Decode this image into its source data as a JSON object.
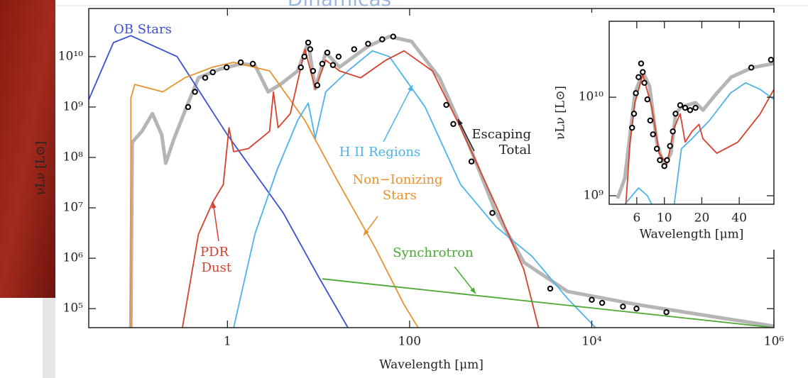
{
  "slide": {
    "title": "Dinámicas"
  },
  "chart_data": [
    {
      "type": "line",
      "xscale": "log",
      "yscale": "log",
      "xlabel": "Wavelength [μm]",
      "ylabel": "νLν [L⊙]",
      "xlim": [
        0.03,
        1000000
      ],
      "ylim": [
        42000,
        90000000000
      ],
      "xticks": [
        1,
        100,
        {
          "value": 10000,
          "label": "10⁴"
        },
        {
          "value": 1000000,
          "label": "10⁶"
        }
      ],
      "yticks": [
        {
          "value": 10000000000,
          "label": "10¹⁰"
        },
        {
          "value": 1000000000,
          "label": "10⁹"
        },
        {
          "value": 100000000,
          "label": "10⁸"
        },
        {
          "value": 10000000,
          "label": "10⁷"
        },
        {
          "value": 1000000,
          "label": "10⁶"
        },
        {
          "value": 100000,
          "label": "10⁵"
        }
      ],
      "series": [
        {
          "name": "Escaping Total",
          "color": "#b5b5b5",
          "x": [
            0.087,
            0.09,
            0.115,
            0.15,
            0.19,
            0.21,
            0.26,
            0.37,
            0.48,
            0.82,
            1.4,
            2,
            2.8,
            3.8,
            5.9,
            7.7,
            9.2,
            12,
            17,
            35,
            60,
            105,
            213,
            437,
            890,
            1800,
            5400,
            32000,
            190000,
            1000000
          ],
          "values": [
            42000,
            200000000,
            330000000,
            740000000,
            280000000,
            77000000,
            240000000,
            1200000000,
            3800000000,
            5600000000,
            7200000000,
            6800000000,
            2000000000,
            2800000000,
            5200000000,
            19000000000,
            2300000000,
            12000000000,
            6200000000,
            16000000000,
            25000000000,
            20000000000,
            3800000000,
            200000000,
            7900000,
            830000,
            220000,
            120000,
            72000,
            45000
          ]
        },
        {
          "name": "OB Stars",
          "color": "#3b4fd6",
          "x": [
            0.03,
            0.056,
            0.087,
            0.28,
            1,
            4.1,
            10,
            21
          ],
          "values": [
            1400000000,
            19000000000,
            26000000000,
            10000000000,
            280000000,
            7900000,
            430000,
            42000
          ]
        },
        {
          "name": "Non−Ionizing Stars",
          "color": "#e8922e",
          "x": [
            0.087,
            0.087,
            0.096,
            0.195,
            0.34,
            0.69,
            1.17,
            2.9,
            7.1,
            17,
            42,
            87,
            124
          ],
          "values": [
            42000,
            1500000000,
            2800000000,
            2000000000,
            3800000000,
            6200000000,
            7700000000,
            5200000000,
            540000000,
            29000000,
            1600000,
            120000,
            42000
          ]
        },
        {
          "name": "H II Regions",
          "color": "#4cb3ea",
          "x": [
            1.17,
            2,
            3.5,
            5.9,
            7.7,
            9.2,
            12,
            21,
            39,
            60,
            148,
            363,
            890,
            2200,
            5400,
            11000
          ],
          "values": [
            42000,
            3000000,
            56000000,
            540000000,
            1200000000,
            240000000,
            2000000000,
            5200000000,
            13000000000,
            10000000000,
            1000000000,
            29000000,
            4200000,
            1100000,
            160000,
            42000
          ]
        },
        {
          "name": "PDR Dust",
          "color": "#d6402c",
          "x": [
            0.32,
            0.48,
            0.69,
            0.9,
            1.04,
            1.17,
            1.7,
            2.9,
            3.2,
            3.6,
            4.9,
            7.1,
            9.2,
            12,
            17,
            29,
            55,
            87,
            178,
            363,
            890,
            1800,
            2600
          ],
          "values": [
            42000,
            3000000,
            13000000,
            29000000,
            390000000,
            130000000,
            150000000,
            330000000,
            2000000000,
            390000000,
            740000000,
            14000000000,
            2300000000,
            8500000000,
            5200000000,
            3800000000,
            8500000000,
            13000000000,
            5200000000,
            390000000,
            11000000,
            590000,
            42000
          ]
        },
        {
          "name": "Synchrotron",
          "color": "#4aa832",
          "x": [
            11,
            1000000
          ],
          "values": [
            390000,
            42000
          ]
        }
      ],
      "points": {
        "color": "#000000",
        "x": [
          0.37,
          0.44,
          0.57,
          0.69,
          0.98,
          1.4,
          1.9,
          6.4,
          7,
          7.7,
          8.1,
          8.7,
          9.7,
          11,
          12.5,
          14.4,
          16.6,
          24.6,
          35,
          50,
          66,
          253,
          302,
          478,
          810,
          3500,
          10000,
          13000,
          22000,
          31000,
          66000
        ],
        "values": [
          1000000000,
          2000000000,
          3800000000,
          4900000000,
          6100000000,
          7700000000,
          7200000000,
          6100000000,
          10000000000,
          19000000000,
          14000000000,
          5200000000,
          2700000000,
          7200000000,
          12000000000,
          6800000000,
          10000000000,
          14000000000,
          18000000000,
          22000000000,
          25000000000,
          1100000000,
          460000000,
          83000000,
          7900000,
          250000,
          150000,
          130000,
          110000,
          100000,
          85000
        ]
      }
    },
    {
      "type": "line",
      "xscale": "log",
      "yscale": "log",
      "xlabel": "Wavelength [μm]",
      "ylabel": "νLν [L⊙]",
      "xlim": [
        3.6,
        76
      ],
      "ylim": [
        820000000,
        59000000000
      ],
      "xticks": [
        6,
        10,
        20,
        40
      ],
      "yticks": [
        {
          "value": 10000000000,
          "label": "10¹⁰"
        },
        {
          "value": 1000000000,
          "label": "10⁹"
        }
      ],
      "series": [
        {
          "color": "#b5b5b5",
          "x": [
            4.2,
            4.8,
            5.3,
            5.8,
            6.7,
            7.6,
            8.7,
            9.9,
            11.3,
            12.3,
            13.7,
            17.8,
            20.4,
            26.4,
            34.5,
            51,
            76
          ],
          "values": [
            940000000,
            1500000000,
            4200000000,
            11000000000,
            18000000000,
            13000000000,
            3500000000,
            2000000000,
            2700000000,
            6800000000,
            8000000000,
            8800000000,
            7400000000,
            11000000000,
            16000000000,
            20000000000,
            22000000000
          ]
        },
        {
          "color": "#4cb3ea",
          "x": [
            4.8,
            6.2,
            7.3,
            7.9,
            null,
            12,
            13.7,
            16.7,
            23,
            34,
            45,
            59,
            76
          ],
          "values": [
            820000000,
            1200000000,
            1000000000,
            820000000,
            null,
            820000000,
            3000000000,
            3800000000,
            5800000000,
            11000000000,
            14000000000,
            12000000000,
            9500000000
          ]
        },
        {
          "color": "#d6402c",
          "x": [
            4.9,
            5.3,
            5.8,
            6.7,
            7.9,
            9.1,
            10.5,
            12,
            13.4,
            14.7,
            16.7,
            19,
            20.4,
            26.4,
            39,
            59,
            76
          ],
          "values": [
            820000000,
            3500000000,
            8800000000,
            17000000000,
            8000000000,
            2700000000,
            2100000000,
            4900000000,
            6800000000,
            3500000000,
            4500000000,
            5300000000,
            3800000000,
            2700000000,
            3500000000,
            6800000000,
            12000000000
          ]
        }
      ],
      "points": {
        "color": "#000000",
        "x": [
          5.5,
          5.7,
          5.9,
          6.2,
          6.5,
          6.7,
          6.9,
          7.3,
          7.7,
          8.1,
          8.7,
          9.2,
          10,
          10.5,
          11.1,
          11.7,
          12.3,
          13.4,
          14.7,
          16.1,
          17.8,
          50,
          72
        ],
        "values": [
          4900000000,
          6800000000,
          11000000000,
          16000000000,
          22000000000,
          18000000000,
          14000000000,
          9500000000,
          5800000000,
          4200000000,
          3000000000,
          2300000000,
          2000000000,
          2300000000,
          3200000000,
          4500000000,
          6800000000,
          8300000000,
          7800000000,
          7400000000,
          7800000000,
          20000000000,
          24000000000
        ]
      }
    }
  ]
}
